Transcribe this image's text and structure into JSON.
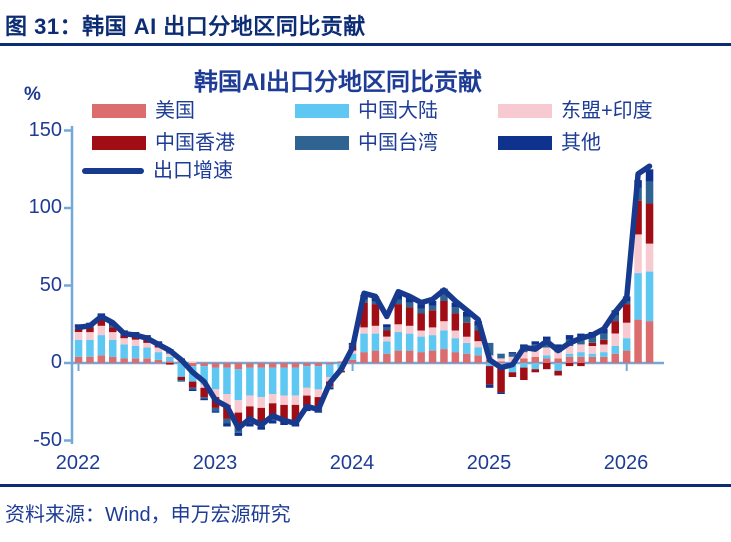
{
  "header": {
    "title": "图 31：韩国 AI 出口分地区同比贡献"
  },
  "source": {
    "label": "资料来源：Wind，申万宏源研究"
  },
  "colors": {
    "axis": "#72a9d9",
    "header_navy": "#0c2c74",
    "text_navy": "#1e3c96"
  },
  "chart_data": {
    "type": "bar",
    "subtype": "stacked-bar-with-line",
    "title": "韩国AI出口分地区同比贡献",
    "ylabel": "%",
    "ylim": [
      -50,
      150
    ],
    "yticks": [
      150,
      100,
      50,
      0,
      -50
    ],
    "xticks": [
      "2022",
      "2023",
      "2024",
      "2025",
      "2026"
    ],
    "grid": false,
    "legend_position": "top",
    "months": [
      "2022-01",
      "2022-02",
      "2022-03",
      "2022-04",
      "2022-05",
      "2022-06",
      "2022-07",
      "2022-08",
      "2022-09",
      "2022-10",
      "2022-11",
      "2022-12",
      "2023-01",
      "2023-02",
      "2023-03",
      "2023-04",
      "2023-05",
      "2023-06",
      "2023-07",
      "2023-08",
      "2023-09",
      "2023-10",
      "2023-11",
      "2023-12",
      "2024-01",
      "2024-02",
      "2024-03",
      "2024-04",
      "2024-05",
      "2024-06",
      "2024-07",
      "2024-08",
      "2024-09",
      "2024-10",
      "2024-11",
      "2024-12",
      "2025-01",
      "2025-02",
      "2025-03",
      "2025-04",
      "2025-05",
      "2025-06",
      "2025-07",
      "2025-08",
      "2025-09",
      "2025-10",
      "2025-11",
      "2025-12",
      "2026-01",
      "2026-02",
      "2026-03"
    ],
    "series": [
      {
        "name": "美国",
        "type": "bar",
        "color": "#db6d6f",
        "values": [
          4,
          4,
          5,
          4,
          3,
          3,
          3,
          2,
          1,
          1,
          -2,
          -2,
          -3,
          -3,
          -4,
          -3,
          -3,
          -3,
          -3,
          -3,
          -2,
          -2,
          -1,
          1,
          2,
          7,
          8,
          6,
          8,
          8,
          7,
          8,
          9,
          7,
          6,
          5,
          2,
          1,
          -1,
          3,
          4,
          3,
          3,
          4,
          4,
          4,
          4,
          6,
          8,
          28,
          27
        ]
      },
      {
        "name": "中国大陆",
        "type": "bar",
        "color": "#5ec8f2",
        "values": [
          11,
          11,
          13,
          11,
          9,
          8,
          7,
          5,
          3,
          -9,
          -10,
          -12,
          -14,
          -17,
          -20,
          -18,
          -19,
          -17,
          -18,
          -18,
          -14,
          -15,
          -8,
          -4,
          4,
          12,
          11,
          8,
          12,
          11,
          10,
          10,
          12,
          9,
          7,
          5,
          -2,
          -3,
          -5,
          -3,
          -4,
          2,
          -5,
          2,
          3,
          2,
          3,
          5,
          8,
          30,
          32
        ]
      },
      {
        "name": "东盟+印度",
        "type": "bar",
        "color": "#f7c9d0",
        "values": [
          5,
          5,
          6,
          5,
          4,
          4,
          3,
          3,
          2,
          1,
          1,
          -2,
          -5,
          -7,
          -8,
          -7,
          -7,
          -6,
          -6,
          -6,
          -5,
          -5,
          -3,
          -1,
          2,
          4,
          5,
          3,
          5,
          5,
          4,
          5,
          6,
          5,
          4,
          4,
          3,
          2,
          4,
          4,
          5,
          5,
          4,
          5,
          5,
          5,
          5,
          8,
          10,
          25,
          18
        ]
      },
      {
        "name": "中国香港",
        "type": "bar",
        "color": "#a00d15",
        "values": [
          2,
          3,
          4,
          3,
          2,
          2,
          2,
          1,
          -1,
          -2,
          -4,
          -6,
          -7,
          -9,
          -10,
          -9,
          -10,
          -9,
          -9,
          -10,
          -7,
          -7,
          -3,
          -1,
          3,
          16,
          14,
          4,
          13,
          12,
          11,
          11,
          13,
          11,
          9,
          7,
          -12,
          -16,
          -3,
          -8,
          -2,
          -4,
          -3,
          -2,
          -2,
          2,
          3,
          8,
          12,
          22,
          26
        ]
      },
      {
        "name": "中国台湾",
        "type": "bar",
        "color": "#2f6492",
        "values": [
          1,
          1,
          1,
          1,
          1,
          1,
          1,
          1,
          1,
          -1,
          -1,
          -1,
          -2,
          -3,
          -3,
          -2,
          -2,
          -2,
          -2,
          -2,
          -2,
          -2,
          -1,
          0,
          1,
          2,
          2,
          2,
          3,
          3,
          3,
          3,
          4,
          4,
          4,
          3,
          8,
          3,
          2,
          3,
          3,
          4,
          3,
          4,
          4,
          4,
          4,
          4,
          2,
          8,
          14
        ]
      },
      {
        "name": "其他",
        "type": "bar",
        "color": "#10328f",
        "values": [
          2,
          2,
          3,
          2,
          2,
          2,
          2,
          2,
          2,
          1,
          -1,
          -1,
          -1,
          -2,
          -2,
          -2,
          -2,
          -2,
          -2,
          -2,
          -1,
          -1,
          -1,
          0,
          1,
          3,
          3,
          2,
          4,
          3,
          3,
          3,
          4,
          3,
          3,
          3,
          -2,
          -1,
          1,
          2,
          2,
          3,
          2,
          3,
          3,
          3,
          3,
          3,
          3,
          5,
          8
        ]
      },
      {
        "name": "出口增速",
        "type": "line",
        "color": "#183a8e",
        "values": [
          23,
          24,
          30,
          26,
          19,
          18,
          16,
          12,
          8,
          2,
          -6,
          -12,
          -24,
          -28,
          -42,
          -36,
          -40,
          -34,
          -37,
          -39,
          -28,
          -30,
          -13,
          -4,
          10,
          45,
          43,
          30,
          46,
          43,
          39,
          41,
          47,
          40,
          34,
          28,
          2,
          -3,
          -1,
          10,
          9,
          14,
          8,
          13,
          16,
          18,
          22,
          33,
          42,
          122,
          127
        ]
      }
    ]
  }
}
